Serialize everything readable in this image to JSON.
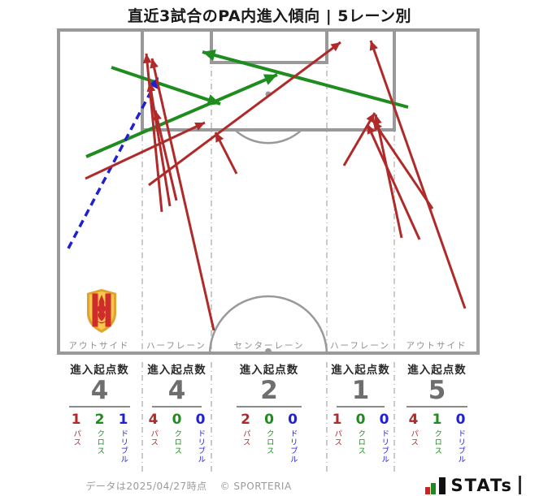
{
  "title": "直近3試合のPA内進入傾向 | 5レーン別",
  "pitch": {
    "lane_labels": [
      "アウトサイド",
      "ハーフレーン",
      "センターレーン",
      "ハーフレーン",
      "アウトサイド"
    ]
  },
  "stats": {
    "header_label": "進入起点数",
    "type_labels": {
      "pass": "パス",
      "cross": "クロス",
      "dribble": "ドリブル"
    },
    "lanes": [
      {
        "label": "アウトサイド",
        "entries": "4",
        "pass": "1",
        "cross": "2",
        "dribble": "1"
      },
      {
        "label": "ハーフレーン",
        "entries": "4",
        "pass": "4",
        "cross": "0",
        "dribble": "0"
      },
      {
        "label": "センターレーン",
        "entries": "2",
        "pass": "2",
        "cross": "0",
        "dribble": "0"
      },
      {
        "label": "ハーフレーン",
        "entries": "1",
        "pass": "1",
        "cross": "0",
        "dribble": "0"
      },
      {
        "label": "アウトサイド",
        "entries": "5",
        "pass": "4",
        "cross": "1",
        "dribble": "0"
      }
    ]
  },
  "footer": {
    "note": "データは2025/04/27時点",
    "copyright": "© SPORTERIA",
    "logo_text": "STATs"
  },
  "colors": {
    "pass": "#b02a2a",
    "cross": "#1f8c1f",
    "dribble": "#2121cc",
    "pitch_line": "#999999"
  },
  "chart_data": {
    "type": "scatter",
    "title": "直近3試合のPA内進入傾向 | 5レーン別",
    "legend": [
      {
        "label": "パス",
        "color": "#b02a2a",
        "style": "solid"
      },
      {
        "label": "クロス",
        "color": "#1f8c1f",
        "style": "solid"
      },
      {
        "label": "ドリブル",
        "color": "#2121cc",
        "style": "dashed"
      }
    ],
    "lanes": [
      {
        "lane": "アウトサイド",
        "entries": 4,
        "pass": 1,
        "cross": 2,
        "dribble": 1
      },
      {
        "lane": "ハーフレーン",
        "entries": 4,
        "pass": 4,
        "cross": 0,
        "dribble": 0
      },
      {
        "lane": "センターレーン",
        "entries": 2,
        "pass": 2,
        "cross": 0,
        "dribble": 0
      },
      {
        "lane": "ハーフレーン",
        "entries": 1,
        "pass": 1,
        "cross": 0,
        "dribble": 0
      },
      {
        "lane": "アウトサイド",
        "entries": 5,
        "pass": 4,
        "cross": 1,
        "dribble": 0
      }
    ],
    "arrows": [
      {
        "type": "cross",
        "from": [
          137,
          83
        ],
        "to": [
          271,
          128
        ]
      },
      {
        "type": "cross",
        "from": [
          106,
          193
        ],
        "to": [
          341,
          92
        ]
      },
      {
        "type": "cross",
        "from": [
          502,
          132
        ],
        "to": [
          249,
          64
        ]
      },
      {
        "type": "dribble",
        "from": [
          84,
          306
        ],
        "to": [
          195,
          95
        ]
      },
      {
        "type": "pass",
        "from": [
          105,
          220
        ],
        "to": [
          252,
          151
        ]
      },
      {
        "type": "pass",
        "from": [
          199,
          261
        ],
        "to": [
          180,
          66
        ]
      },
      {
        "type": "pass",
        "from": [
          209,
          254
        ],
        "to": [
          184,
          101
        ]
      },
      {
        "type": "pass",
        "from": [
          217,
          247
        ],
        "to": [
          191,
          136
        ]
      },
      {
        "type": "pass",
        "from": [
          183,
          228
        ],
        "to": [
          419,
          52
        ]
      },
      {
        "type": "pass",
        "from": [
          263,
          407
        ],
        "to": [
          187,
          72
        ]
      },
      {
        "type": "pass",
        "from": [
          291,
          214
        ],
        "to": [
          265,
          163
        ]
      },
      {
        "type": "pass",
        "from": [
          423,
          204
        ],
        "to": [
          461,
          139
        ]
      },
      {
        "type": "pass",
        "from": [
          494,
          293
        ],
        "to": [
          462,
          141
        ]
      },
      {
        "type": "pass",
        "from": [
          516,
          295
        ],
        "to": [
          452,
          153
        ]
      },
      {
        "type": "pass",
        "from": [
          532,
          257
        ],
        "to": [
          459,
          149
        ]
      },
      {
        "type": "pass",
        "from": [
          572,
          380
        ],
        "to": [
          456,
          50
        ]
      }
    ]
  }
}
